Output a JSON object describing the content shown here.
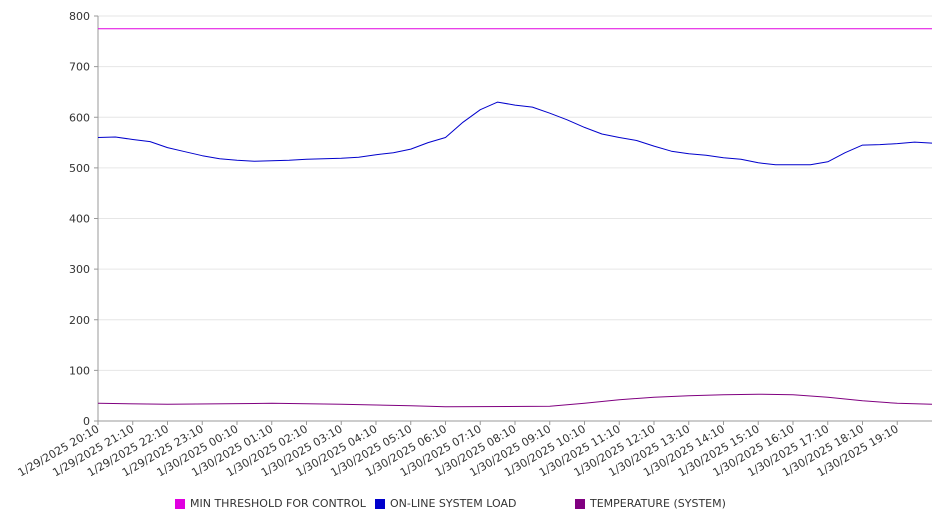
{
  "chart_data": {
    "type": "line",
    "y_ticks": [
      0,
      100,
      200,
      300,
      400,
      500,
      600,
      700,
      800
    ],
    "ylim": [
      0,
      800
    ],
    "grid": true,
    "legend_position": "bottom",
    "x": [
      "1/29/2025 20:10",
      "1/29/2025 21:10",
      "1/29/2025 22:10",
      "1/29/2025 23:10",
      "1/30/2025 00:10",
      "1/30/2025 01:10",
      "1/30/2025 02:10",
      "1/30/2025 03:10",
      "1/30/2025 04:10",
      "1/30/2025 05:10",
      "1/30/2025 06:10",
      "1/30/2025 07:10",
      "1/30/2025 08:10",
      "1/30/2025 09:10",
      "1/30/2025 10:10",
      "1/30/2025 11:10",
      "1/30/2025 12:10",
      "1/30/2025 13:10",
      "1/30/2025 14:10",
      "1/30/2025 15:10",
      "1/30/2025 16:10",
      "1/30/2025 17:10",
      "1/30/2025 18:10",
      "1/30/2025 19:10"
    ],
    "x_end": "1/30/2025 20:10",
    "series": [
      {
        "name": "MIN THRESHOLD FOR CONTROL",
        "color": "#e000e0",
        "points": [
          [
            "1/29/2025 20:10",
            775
          ],
          [
            "1/30/2025 20:10",
            775
          ]
        ]
      },
      {
        "name": "ON-LINE SYSTEM LOAD",
        "color": "#0000cc",
        "points": [
          [
            "1/29/2025 20:10",
            560
          ],
          [
            "1/29/2025 20:40",
            561
          ],
          [
            "1/29/2025 21:10",
            556
          ],
          [
            "1/29/2025 21:40",
            552
          ],
          [
            "1/29/2025 22:10",
            540
          ],
          [
            "1/29/2025 22:40",
            532
          ],
          [
            "1/29/2025 23:10",
            524
          ],
          [
            "1/29/2025 23:40",
            518
          ],
          [
            "1/30/2025 00:10",
            515
          ],
          [
            "1/30/2025 00:40",
            513
          ],
          [
            "1/30/2025 01:10",
            514
          ],
          [
            "1/30/2025 01:40",
            515
          ],
          [
            "1/30/2025 02:10",
            517
          ],
          [
            "1/30/2025 02:40",
            518
          ],
          [
            "1/30/2025 03:10",
            519
          ],
          [
            "1/30/2025 03:40",
            521
          ],
          [
            "1/30/2025 04:10",
            526
          ],
          [
            "1/30/2025 04:40",
            530
          ],
          [
            "1/30/2025 05:10",
            537
          ],
          [
            "1/30/2025 05:40",
            550
          ],
          [
            "1/30/2025 06:10",
            560
          ],
          [
            "1/30/2025 06:40",
            590
          ],
          [
            "1/30/2025 07:10",
            615
          ],
          [
            "1/30/2025 07:40",
            630
          ],
          [
            "1/30/2025 08:10",
            624
          ],
          [
            "1/30/2025 08:40",
            620
          ],
          [
            "1/30/2025 09:10",
            608
          ],
          [
            "1/30/2025 09:40",
            595
          ],
          [
            "1/30/2025 10:10",
            580
          ],
          [
            "1/30/2025 10:40",
            567
          ],
          [
            "1/30/2025 11:10",
            560
          ],
          [
            "1/30/2025 11:40",
            554
          ],
          [
            "1/30/2025 12:10",
            543
          ],
          [
            "1/30/2025 12:40",
            533
          ],
          [
            "1/30/2025 13:10",
            528
          ],
          [
            "1/30/2025 13:40",
            525
          ],
          [
            "1/30/2025 14:10",
            520
          ],
          [
            "1/30/2025 14:40",
            517
          ],
          [
            "1/30/2025 15:10",
            510
          ],
          [
            "1/30/2025 15:40",
            506
          ],
          [
            "1/30/2025 16:10",
            506
          ],
          [
            "1/30/2025 16:40",
            506
          ],
          [
            "1/30/2025 17:10",
            512
          ],
          [
            "1/30/2025 17:40",
            530
          ],
          [
            "1/30/2025 18:10",
            545
          ],
          [
            "1/30/2025 18:40",
            546
          ],
          [
            "1/30/2025 19:10",
            548
          ],
          [
            "1/30/2025 19:40",
            551
          ],
          [
            "1/30/2025 20:10",
            549
          ]
        ]
      },
      {
        "name": "TEMPERATURE (SYSTEM)",
        "color": "#800080",
        "points": [
          [
            "1/29/2025 20:10",
            35
          ],
          [
            "1/29/2025 22:10",
            33
          ],
          [
            "1/30/2025 01:10",
            35
          ],
          [
            "1/30/2025 03:10",
            33
          ],
          [
            "1/30/2025 05:10",
            30
          ],
          [
            "1/30/2025 06:10",
            28
          ],
          [
            "1/30/2025 09:10",
            29
          ],
          [
            "1/30/2025 10:10",
            35
          ],
          [
            "1/30/2025 11:10",
            42
          ],
          [
            "1/30/2025 12:10",
            47
          ],
          [
            "1/30/2025 13:10",
            50
          ],
          [
            "1/30/2025 14:10",
            52
          ],
          [
            "1/30/2025 15:10",
            53
          ],
          [
            "1/30/2025 16:10",
            52
          ],
          [
            "1/30/2025 17:10",
            47
          ],
          [
            "1/30/2025 18:10",
            40
          ],
          [
            "1/30/2025 19:10",
            35
          ],
          [
            "1/30/2025 20:10",
            33
          ]
        ]
      }
    ]
  }
}
